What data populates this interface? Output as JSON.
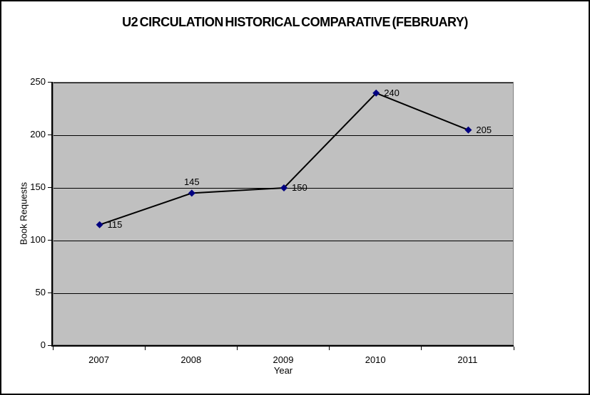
{
  "chart_data": {
    "type": "line",
    "title": "U2 CIRCULATION HISTORICAL COMPARATIVE (FEBRUARY)",
    "xlabel": "Year",
    "ylabel": "Book Requests",
    "categories": [
      "2007",
      "2008",
      "2009",
      "2010",
      "2011"
    ],
    "series": [
      {
        "name": "Book Requests",
        "values": [
          115,
          145,
          150,
          240,
          205
        ]
      }
    ],
    "ylim": [
      0,
      250
    ],
    "yticks": [
      0,
      50,
      100,
      150,
      200,
      250
    ],
    "data_labels": [
      {
        "value": "115",
        "position": "right"
      },
      {
        "value": "145",
        "position": "above"
      },
      {
        "value": "150",
        "position": "right"
      },
      {
        "value": "240",
        "position": "right"
      },
      {
        "value": "205",
        "position": "right"
      }
    ],
    "legend": "none",
    "grid": "horizontal",
    "colors": {
      "line": "#000000",
      "marker": "#000080",
      "plot_bg": "#c0c0c0",
      "plot_border": "#808080",
      "gridline": "#000000",
      "axis": "#000000",
      "text": "#000000"
    }
  }
}
